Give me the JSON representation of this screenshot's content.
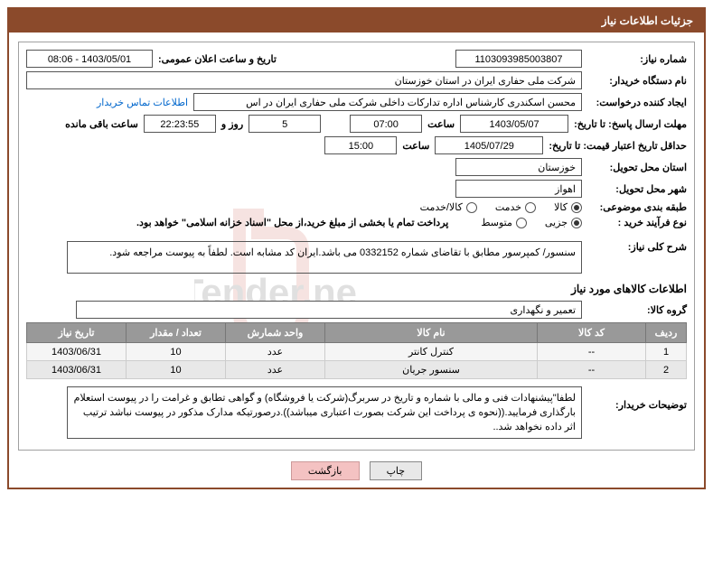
{
  "panel_title": "جزئیات اطلاعات نیاز",
  "fields": {
    "need_number_label": "شماره نیاز:",
    "need_number": "1103093985003807",
    "announce_label": "تاریخ و ساعت اعلان عمومی:",
    "announce_value": "1403/05/01 - 08:06",
    "buyer_org_label": "نام دستگاه خریدار:",
    "buyer_org": "شرکت ملی حفاری ایران در استان خوزستان",
    "requester_label": "ایجاد کننده درخواست:",
    "requester": "محسن اسکندری کارشناس اداره تدارکات داخلی  شرکت ملی حفاری ایران در اس",
    "contact_link": "اطلاعات تماس خریدار",
    "deadline_label": "مهلت ارسال پاسخ: تا تاریخ:",
    "deadline_date": "1403/05/07",
    "time_label": "ساعت",
    "deadline_time": "07:00",
    "days_value": "5",
    "days_label": "روز و",
    "remain_time": "22:23:55",
    "remain_label": "ساعت باقی مانده",
    "validity_label": "حداقل تاریخ اعتبار قیمت: تا تاریخ:",
    "validity_date": "1405/07/29",
    "validity_time": "15:00",
    "province_label": "استان محل تحویل:",
    "province": "خوزستان",
    "city_label": "شهر محل تحویل:",
    "city": "اهواز",
    "category_label": "طبقه بندی موضوعی:",
    "cat_goods": "کالا",
    "cat_service": "خدمت",
    "cat_both": "کالا/خدمت",
    "process_label": "نوع فرآیند خرید :",
    "proc_small": "جزیی",
    "proc_medium": "متوسط",
    "payment_note": "پرداخت تمام یا بخشی از مبلغ خرید،از محل \"اسناد خزانه اسلامی\" خواهد بود.",
    "desc_label": "شرح کلی نیاز:",
    "desc_text": "سنسور/ کمپرسور مطابق با تقاضای شماره 0332152 می باشد.ایران کد مشابه است. لطفاً به پیوست مراجعه شود.",
    "goods_section": "اطلاعات کالاهای مورد نیاز",
    "group_label": "گروه کالا:",
    "group_value": "تعمیر و نگهداری",
    "buyer_notes_label": "توضیحات خریدار:",
    "buyer_notes": "لطفا\"پیشنهادات فنی و مالی با شماره و تاریخ در سربرگ(شرکت یا فروشگاه) و گواهی تطابق و غرامت را در پیوست استعلام بارگذاری فرمایید.((نحوه ی پرداخت این شرکت بصورت اعتباری میباشد)).درصورتیکه مدارک مذکور در پیوست نباشد ترتیب اثر داده نخواهد شد.."
  },
  "table": {
    "headers": {
      "row": "ردیف",
      "code": "کد کالا",
      "name": "نام کالا",
      "unit": "واحد شمارش",
      "qty": "تعداد / مقدار",
      "date": "تاریخ نیاز"
    },
    "rows": [
      {
        "idx": "1",
        "code": "--",
        "name": "کنترل کانتر",
        "unit": "عدد",
        "qty": "10",
        "date": "1403/06/31"
      },
      {
        "idx": "2",
        "code": "--",
        "name": "سنسور جریان",
        "unit": "عدد",
        "qty": "10",
        "date": "1403/06/31"
      }
    ],
    "col_widths": {
      "row": "45px",
      "code": "120px",
      "name": "auto",
      "unit": "110px",
      "qty": "110px",
      "date": "110px"
    }
  },
  "buttons": {
    "print": "چاپ",
    "back": "بازگشت"
  },
  "colors": {
    "panel_border": "#8b4a2b",
    "header_bg": "#8b4a2b",
    "th_bg": "#999999"
  }
}
